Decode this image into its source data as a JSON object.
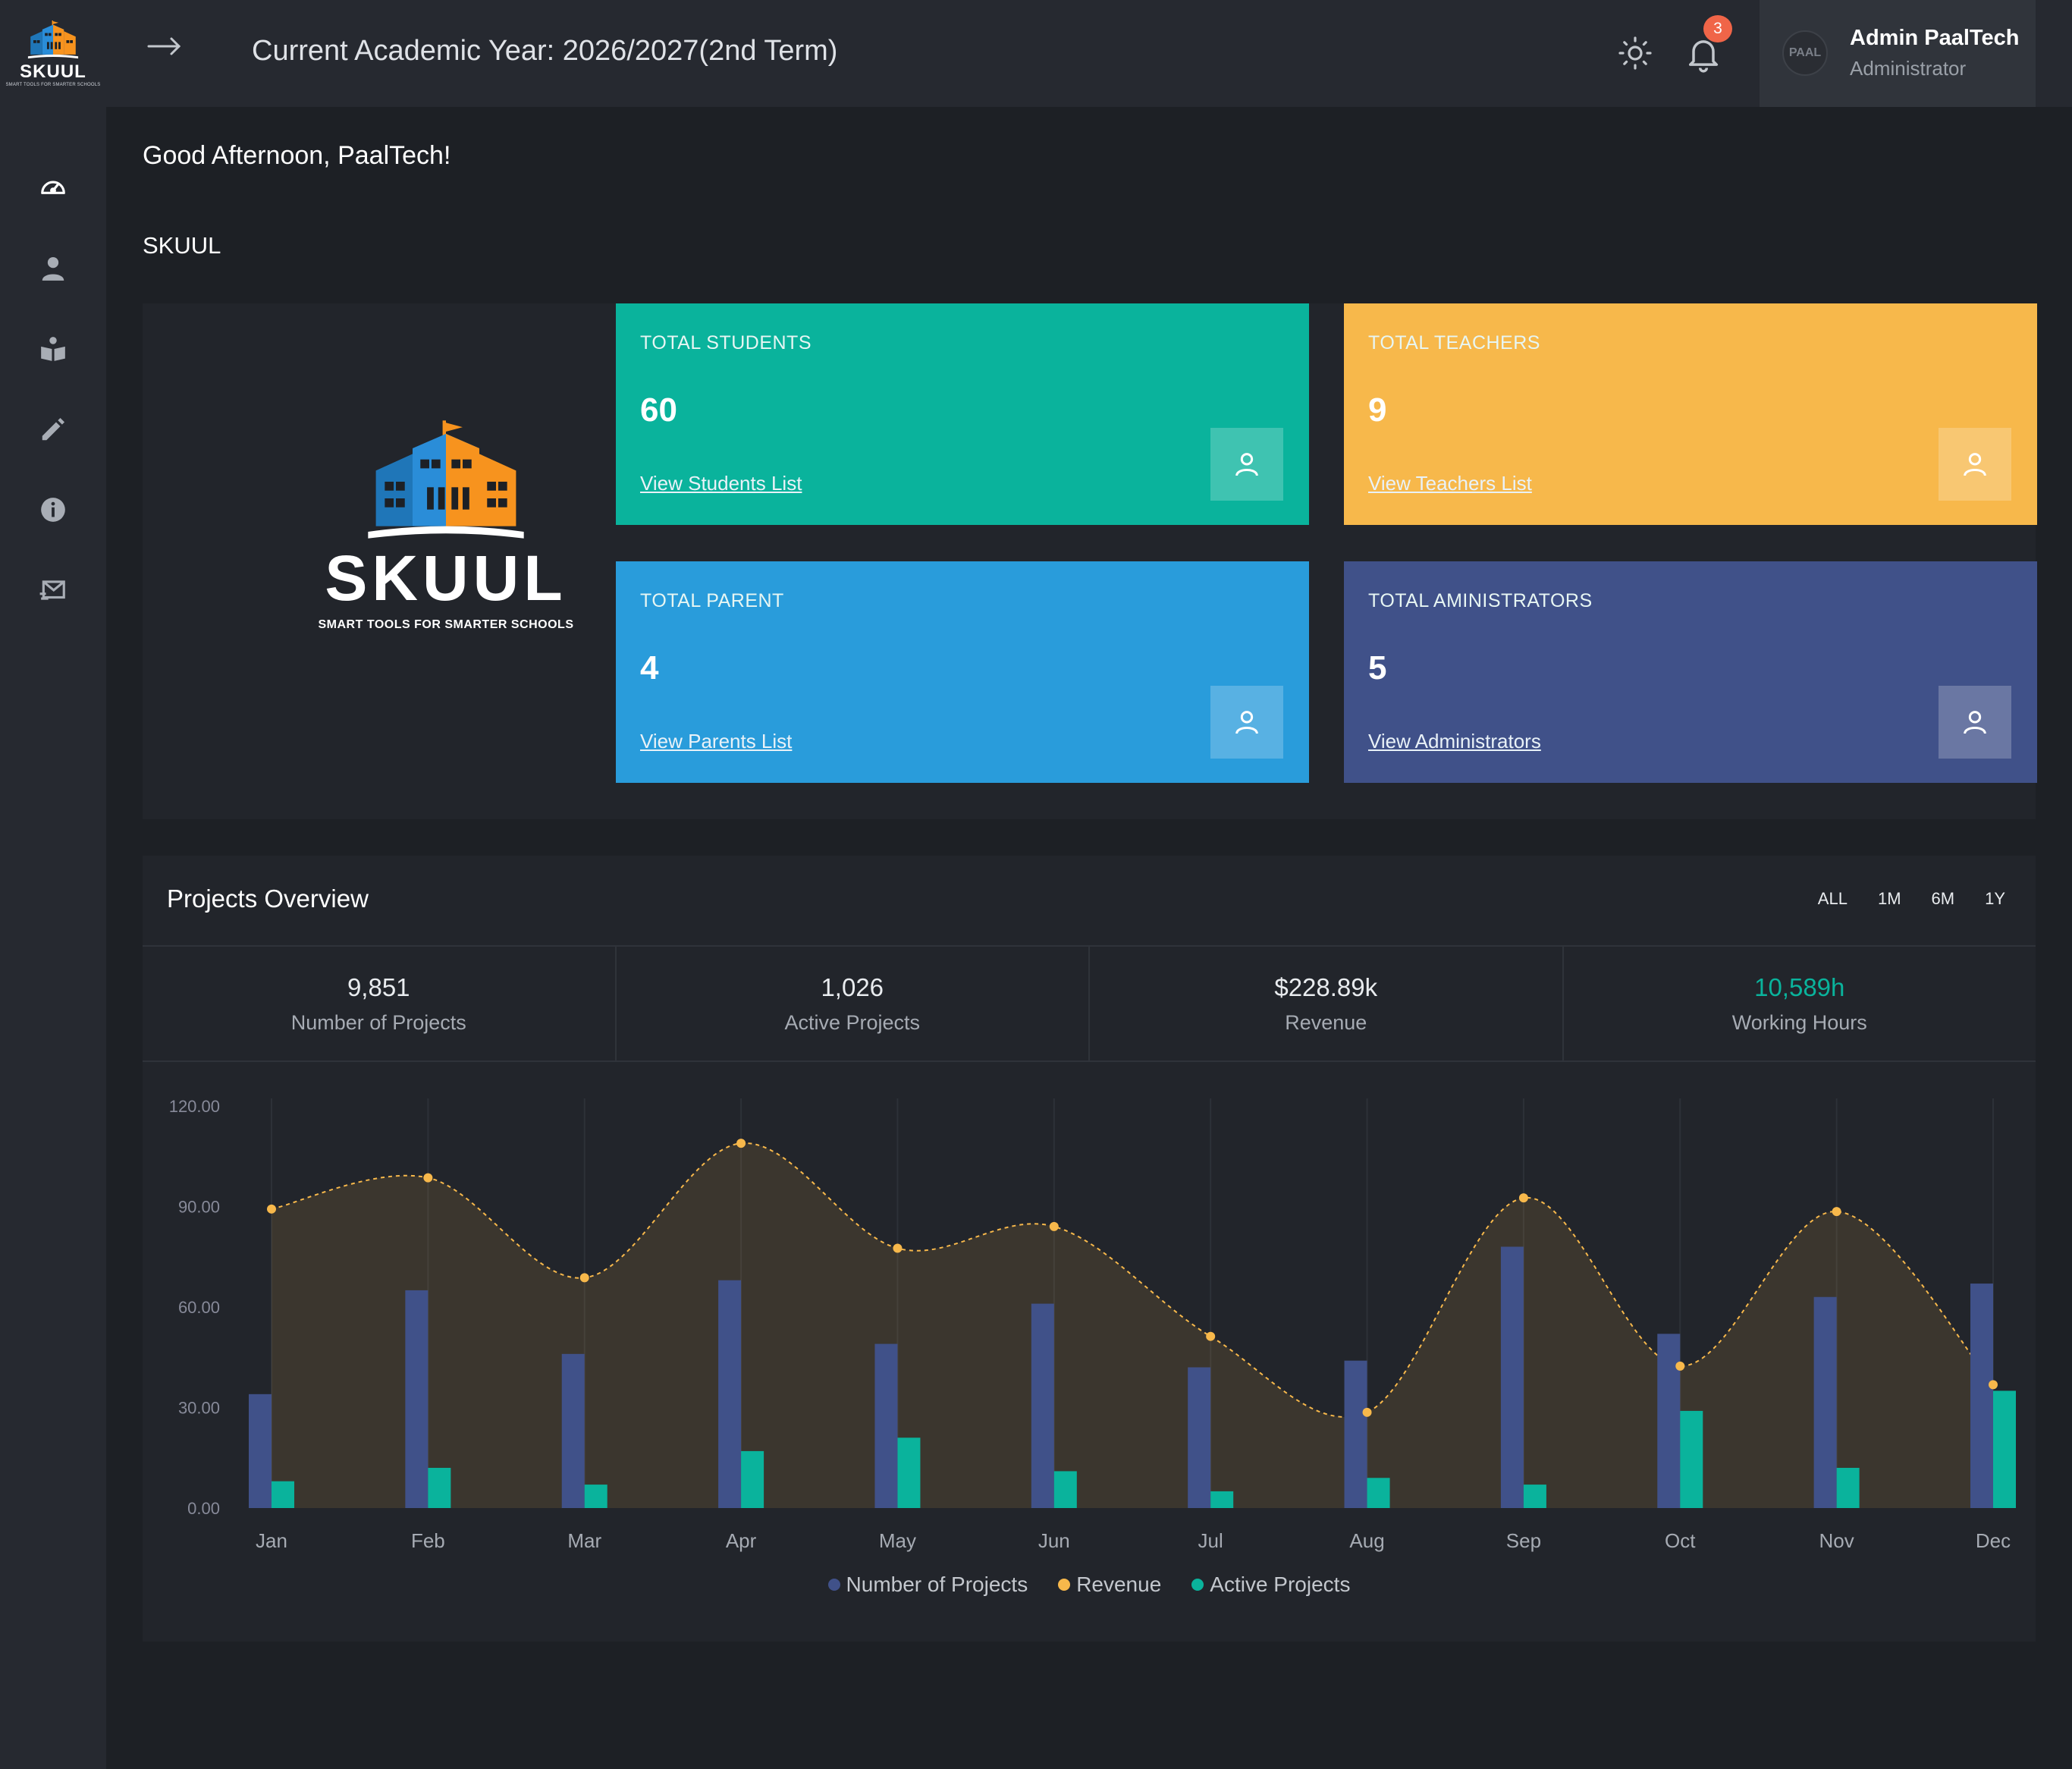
{
  "brand": {
    "name": "SKUUL",
    "tagline": "SMART TOOLS FOR SMARTER SCHOOLS"
  },
  "sidebar": {
    "items": [
      {
        "name": "dashboard",
        "icon": "speedometer-icon"
      },
      {
        "name": "users",
        "icon": "user-icon"
      },
      {
        "name": "reading",
        "icon": "book-reader-icon"
      },
      {
        "name": "edit",
        "icon": "pencil-icon"
      },
      {
        "name": "info",
        "icon": "info-icon"
      },
      {
        "name": "messages",
        "icon": "mail-send-icon"
      }
    ]
  },
  "header": {
    "academic_year": "Current Academic Year: 2026/2027(2nd Term)",
    "notification_count": "3",
    "user": {
      "name": "Admin PaalTech",
      "role": "Administrator",
      "avatar_text": "PAAL"
    }
  },
  "greeting": "Good Afternoon, PaalTech!",
  "section_title": "SKUUL",
  "cards": [
    {
      "label": "TOTAL STUDENTS",
      "value": "60",
      "link": "View Students List",
      "color": "#0ab39c"
    },
    {
      "label": "TOTAL TEACHERS",
      "value": "9",
      "link": "View Teachers List",
      "color": "#f7b84b"
    },
    {
      "label": "TOTAL PARENT",
      "value": "4",
      "link": "View Parents List",
      "color": "#299cdb"
    },
    {
      "label": "TOTAL AMINISTRATORS",
      "value": "5",
      "link": "View Administrators",
      "color": "#405189"
    }
  ],
  "overview": {
    "title": "Projects Overview",
    "ranges": [
      "ALL",
      "1M",
      "6M",
      "1Y"
    ],
    "metrics": [
      {
        "value": "9,851",
        "label": "Number of Projects"
      },
      {
        "value": "1,026",
        "label": "Active Projects"
      },
      {
        "value": "$228.89k",
        "label": "Revenue"
      },
      {
        "value": "10,589h",
        "label": "Working Hours",
        "accent": true
      }
    ]
  },
  "chart_data": {
    "type": "bar",
    "categories": [
      "Jan",
      "Feb",
      "Mar",
      "Apr",
      "May",
      "Jun",
      "Jul",
      "Aug",
      "Sep",
      "Oct",
      "Nov",
      "Dec"
    ],
    "y_ticks": [
      "0.00",
      "30.00",
      "60.00",
      "90.00",
      "120.00"
    ],
    "ylim": [
      0,
      120
    ],
    "grid": "vertical",
    "legend_position": "bottom-center",
    "series": [
      {
        "name": "Number of Projects",
        "type": "bar",
        "color": "#405189",
        "values": [
          34,
          65,
          46,
          68,
          49,
          61,
          42,
          44,
          78,
          52,
          63,
          67
        ]
      },
      {
        "name": "Revenue",
        "type": "area",
        "color": "#f7b84b",
        "values": [
          89.25,
          98.58,
          68.74,
          108.87,
          77.54,
          84.03,
          51.24,
          28.57,
          92.57,
          42.38,
          88.51,
          36.83
        ]
      },
      {
        "name": "Active Projects",
        "type": "bar",
        "color": "#0ab39c",
        "values": [
          8,
          12,
          7,
          17,
          21,
          11,
          5,
          9,
          7,
          29,
          12,
          35
        ]
      }
    ]
  }
}
